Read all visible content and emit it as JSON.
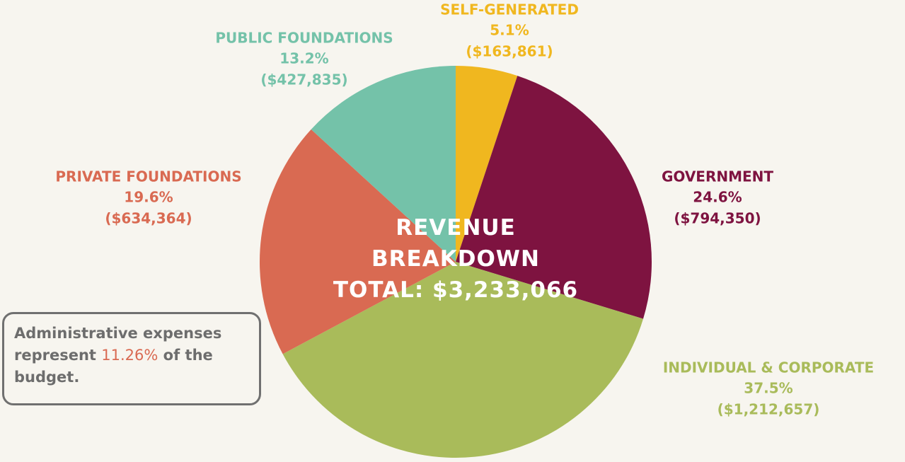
{
  "chart_data": {
    "type": "pie",
    "title": "REVENUE BREAKDOWN",
    "subtitle": "TOTAL: $3,233,066",
    "categories": [
      "SELF-GENERATED",
      "GOVERNMENT",
      "INDIVIDUAL & CORPORATE",
      "PRIVATE FOUNDATIONS",
      "PUBLIC FOUNDATIONS"
    ],
    "values": [
      5.1,
      24.6,
      37.5,
      19.6,
      13.2
    ],
    "value_labels": [
      "5.1%",
      "24.6%",
      "37.5%",
      "19.6%",
      "13.2%"
    ],
    "amounts": [
      163861,
      794350,
      1212657,
      634364,
      427835
    ],
    "amount_labels": [
      "($163,861)",
      "($794,350)",
      "($1,212,657)",
      "($634,364)",
      "($427,835)"
    ],
    "colors": [
      "#f0b71f",
      "#7e1340",
      "#a9bb5a",
      "#d96a52",
      "#74c2a9"
    ]
  },
  "annotation": {
    "text_before": "Administrative expenses represent ",
    "highlight": "11.26%",
    "text_after": " of the budget."
  }
}
